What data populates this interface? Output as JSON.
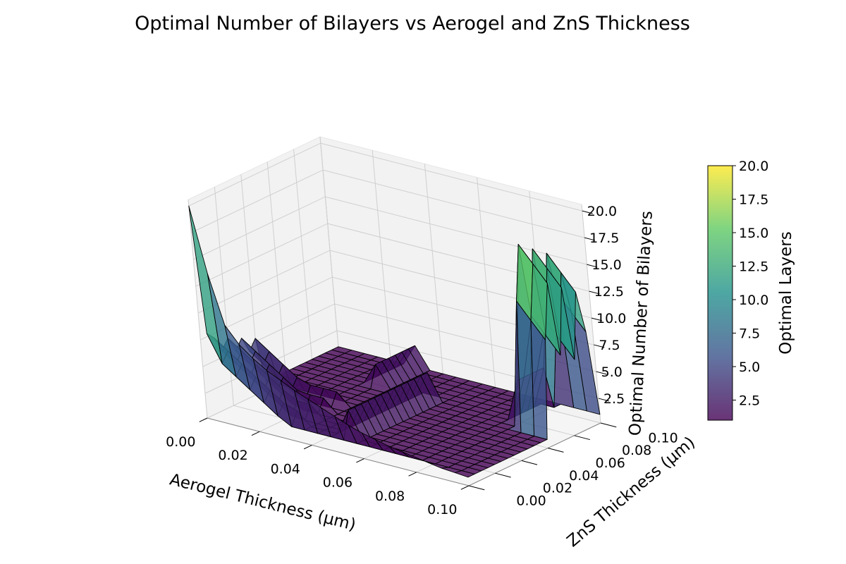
{
  "chart_data": {
    "type": "surface3d",
    "title": "Optimal Number of Bilayers vs Aerogel and ZnS Thickness",
    "xlabel": "Aerogel Thickness (μm)",
    "ylabel": "ZnS Thickness (μm)",
    "zlabel": "Optimal Number of Bilayers",
    "xlim": [
      0,
      0.1
    ],
    "ylim": [
      0,
      0.1
    ],
    "zlim": [
      1,
      20
    ],
    "x_ticks": [
      "0.00",
      "0.02",
      "0.04",
      "0.06",
      "0.08",
      "0.10"
    ],
    "y_ticks": [
      "0.00",
      "0.02",
      "0.04",
      "0.06",
      "0.08",
      "0.10"
    ],
    "z_ticks": [
      "2.5",
      "5.0",
      "7.5",
      "10.0",
      "12.5",
      "15.0",
      "17.5",
      "20.0"
    ],
    "grid": true,
    "colormap": "viridis",
    "colormap_stops": [
      "#440154",
      "#3b528b",
      "#21918c",
      "#5ec962",
      "#fde725"
    ],
    "surface_alpha": 0.8,
    "edge_color": "#000000",
    "grid_size": 21,
    "x_values": [
      0.0,
      0.005,
      0.01,
      0.015,
      0.02,
      0.025,
      0.03,
      0.035,
      0.04,
      0.045,
      0.05,
      0.055,
      0.06,
      0.065,
      0.07,
      0.075,
      0.08,
      0.085,
      0.09,
      0.095,
      0.1
    ],
    "y_values": [
      0.0,
      0.005,
      0.01,
      0.015,
      0.02,
      0.025,
      0.03,
      0.035,
      0.04,
      0.045,
      0.05,
      0.055,
      0.06,
      0.065,
      0.07,
      0.075,
      0.08,
      0.085,
      0.09,
      0.095,
      0.1
    ],
    "z_description": "optimal layers over the (aerogel, zns) grid: 20 at the origin, a ridge decaying to ~1 along zns≈0, ~6-7 ridges at low aerogel thickness, spikes at aerogel≈0.05 and a 13-18 spike block at aerogel≈0.09-0.1, high zns; ~1 elsewhere",
    "colorbar": {
      "label": "Optimal Layers",
      "ticks": [
        "2.5",
        "5.0",
        "7.5",
        "10.0",
        "12.5",
        "15.0",
        "17.5",
        "20.0"
      ],
      "range": [
        1,
        20
      ]
    }
  }
}
